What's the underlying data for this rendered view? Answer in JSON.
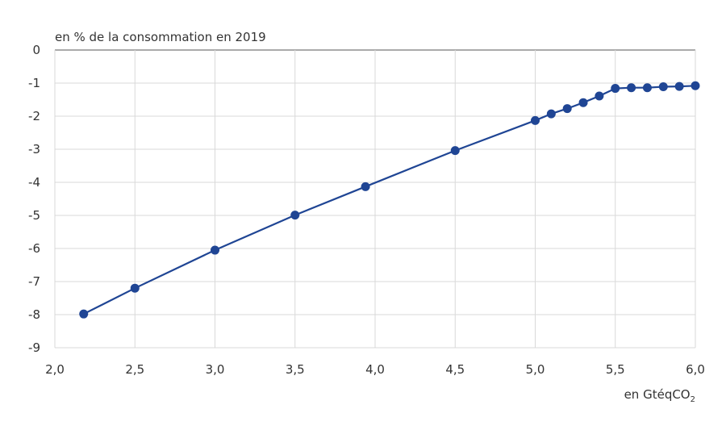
{
  "chart_data": {
    "type": "line",
    "ylabel": "en % de la consommation en 2019",
    "xlabel": {
      "main": "en GtéqCO",
      "subscript": "2"
    },
    "xlim": [
      2.0,
      6.0
    ],
    "ylim": [
      -9,
      0
    ],
    "x_ticks": [
      "2,0",
      "2,5",
      "3,0",
      "3,5",
      "4,0",
      "4,5",
      "5,0",
      "5,5",
      "6,0"
    ],
    "y_ticks": [
      "0",
      "-1",
      "-2",
      "-3",
      "-4",
      "-5",
      "-6",
      "-7",
      "-8",
      "-9"
    ],
    "grid": "vertical and horizontal",
    "series": [
      {
        "color": "#1f4594",
        "points": [
          {
            "x": 2.18,
            "y": -7.98
          },
          {
            "x": 2.5,
            "y": -7.2
          },
          {
            "x": 3.0,
            "y": -6.05
          },
          {
            "x": 3.5,
            "y": -4.99
          },
          {
            "x": 3.94,
            "y": -4.13
          },
          {
            "x": 4.5,
            "y": -3.04
          },
          {
            "x": 5.0,
            "y": -2.13
          },
          {
            "x": 5.1,
            "y": -1.93
          },
          {
            "x": 5.2,
            "y": -1.77
          },
          {
            "x": 5.3,
            "y": -1.59
          },
          {
            "x": 5.4,
            "y": -1.39
          },
          {
            "x": 5.5,
            "y": -1.16
          },
          {
            "x": 5.6,
            "y": -1.14
          },
          {
            "x": 5.7,
            "y": -1.14
          },
          {
            "x": 5.8,
            "y": -1.11
          },
          {
            "x": 5.9,
            "y": -1.1
          },
          {
            "x": 6.0,
            "y": -1.08
          }
        ]
      }
    ]
  }
}
